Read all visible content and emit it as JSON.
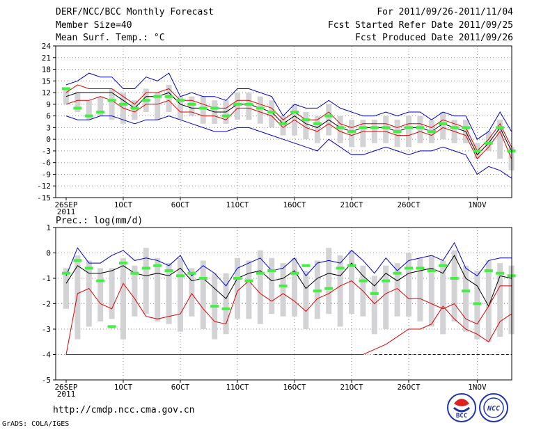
{
  "header": {
    "title": "DERF/NCC/BCC Monthly Forecast",
    "member_size": "Member Size=40",
    "variable": "Mean Surf. Temp.: °C",
    "forecast_range": "For 2011/09/26-2011/11/04",
    "fcst_started": "Fcst Started Refer Date 2011/09/25",
    "fcst_produced": "Fcst Produced Date 2011/09/26"
  },
  "footer": {
    "url": "http://cmdp.ncc.cma.gov.cn",
    "grads": "GrADS: COLA/IGES",
    "logo_bcc": "BCC",
    "logo_ncc": "NCC"
  },
  "colors": {
    "box": "#d3d3d6",
    "blue": "#0000cc",
    "red": "#dd0000",
    "black": "#000000",
    "green": "#44ee44"
  },
  "chart_data": [
    {
      "type": "line",
      "title": "Mean Surf. Temp.: °C",
      "ylim": [
        -15,
        24
      ],
      "yticks": [
        -15,
        -12,
        -9,
        -6,
        -3,
        0,
        3,
        6,
        9,
        12,
        15,
        18,
        21,
        24
      ],
      "xticks": [
        {
          "day": 0,
          "label": "26SEP"
        },
        {
          "day": 5,
          "label": "1OCT"
        },
        {
          "day": 10,
          "label": "6OCT"
        },
        {
          "day": 15,
          "label": "11OCT"
        },
        {
          "day": 20,
          "label": "16OCT"
        },
        {
          "day": 25,
          "label": "21OCT"
        },
        {
          "day": 30,
          "label": "26OCT"
        },
        {
          "day": 36,
          "label": "1NOV"
        }
      ],
      "year_label": "2011",
      "series": [
        {
          "name": "max",
          "color": "blue",
          "values": [
            14,
            15,
            17,
            16,
            16,
            13,
            13,
            16,
            15,
            17,
            11,
            12,
            11,
            11,
            10,
            13,
            13,
            12,
            11,
            6,
            9,
            8,
            8,
            10,
            8,
            7,
            6,
            6,
            7,
            6,
            7,
            7,
            5,
            7,
            6,
            6,
            0,
            2,
            7,
            2
          ]
        },
        {
          "name": "upper",
          "color": "red",
          "values": [
            12,
            14,
            13,
            13,
            13,
            11,
            9,
            12,
            12,
            13,
            10,
            10,
            9,
            8,
            8,
            10,
            10,
            9,
            8,
            5,
            7,
            5,
            5,
            7,
            4,
            3,
            4,
            4,
            4,
            3,
            4,
            4,
            3,
            5,
            4,
            3,
            -3,
            0,
            4,
            -2
          ]
        },
        {
          "name": "mean",
          "color": "black",
          "values": [
            11,
            12,
            12,
            12,
            12,
            10,
            8,
            11,
            11,
            12,
            9,
            8,
            8,
            7,
            7,
            9,
            9,
            8,
            7,
            4,
            6,
            4,
            3,
            5,
            3,
            2,
            3,
            3,
            3,
            2,
            3,
            3,
            2,
            4,
            3,
            2,
            -4,
            -1,
            3,
            -3
          ]
        },
        {
          "name": "lower",
          "color": "red",
          "values": [
            9,
            10,
            10,
            11,
            10,
            8,
            7,
            9,
            9,
            10,
            7,
            7,
            6,
            6,
            5,
            8,
            8,
            7,
            6,
            3,
            5,
            3,
            2,
            4,
            2,
            1,
            2,
            2,
            2,
            1,
            1,
            2,
            1,
            3,
            2,
            1,
            -5,
            -2,
            2,
            -5
          ]
        },
        {
          "name": "min",
          "color": "blue",
          "values": [
            6,
            5,
            5,
            6,
            6,
            5,
            4,
            5,
            5,
            6,
            5,
            4,
            3,
            2,
            2,
            3,
            3,
            2,
            1,
            0,
            -1,
            -2,
            -3,
            0,
            -2,
            -4,
            -4,
            -3,
            -2,
            -3,
            -4,
            -3,
            -3,
            -2,
            -3,
            -4,
            -9,
            -7,
            -8,
            -10
          ]
        }
      ],
      "obs_values": [
        13,
        8,
        6,
        7,
        10,
        9,
        8,
        10,
        11,
        11,
        10,
        9,
        8,
        8,
        6,
        9,
        9,
        8,
        7,
        4,
        7,
        5,
        4,
        6,
        3,
        2,
        3,
        3,
        3,
        2,
        3,
        3,
        2,
        4,
        3,
        3,
        -3,
        -1,
        3,
        -3
      ],
      "box_upper": [
        13,
        12,
        10,
        11,
        13,
        12,
        10,
        13,
        12,
        14,
        11,
        11,
        11,
        10,
        10,
        12,
        12,
        11,
        10,
        6,
        9,
        7,
        6,
        9,
        6,
        5,
        5,
        5,
        6,
        5,
        6,
        6,
        5,
        7,
        5,
        5,
        -1,
        2,
        5,
        -2
      ],
      "box_lower": [
        9,
        7,
        5,
        6,
        5,
        4,
        5,
        7,
        5,
        7,
        5,
        6,
        4,
        4,
        4,
        5,
        5,
        4,
        3,
        1,
        1,
        0,
        -1,
        1,
        -1,
        -2,
        -2,
        -1,
        -1,
        -2,
        -2,
        -1,
        -1,
        0,
        -1,
        -1,
        -5,
        -3,
        -5,
        -8
      ]
    },
    {
      "type": "line",
      "title": "Prec.: log(mm/d)",
      "ylim": [
        -5,
        1
      ],
      "yticks": [
        -5,
        -4,
        -3,
        -2,
        -1,
        0,
        1
      ],
      "xticks": [
        {
          "day": 0,
          "label": "26SEP"
        },
        {
          "day": 5,
          "label": "1OCT"
        },
        {
          "day": 10,
          "label": "6OCT"
        },
        {
          "day": 15,
          "label": "11OCT"
        },
        {
          "day": 20,
          "label": "16OCT"
        },
        {
          "day": 25,
          "label": "21OCT"
        },
        {
          "day": 30,
          "label": "26OCT"
        },
        {
          "day": 36,
          "label": "1NOV"
        }
      ],
      "year_label": "2011",
      "series": [
        {
          "name": "max",
          "color": "blue",
          "values": [
            -0.9,
            0.2,
            -0.4,
            -0.4,
            -0.1,
            0.1,
            -0.3,
            -0.2,
            -0.3,
            -0.5,
            -0.1,
            -0.9,
            -0.5,
            -0.8,
            -1.3,
            -0.6,
            -0.4,
            -0.2,
            -0.7,
            -0.6,
            -0.2,
            -0.9,
            -0.4,
            -0.3,
            -0.4,
            0.1,
            -0.3,
            -0.8,
            -0.2,
            -0.7,
            -0.3,
            -0.2,
            -0.1,
            -0.3,
            0.4,
            -0.6,
            -0.9,
            -0.3,
            -0.2,
            -0.2
          ]
        },
        {
          "name": "mean",
          "color": "black",
          "values": [
            -1.2,
            -0.5,
            -0.8,
            -0.8,
            -0.7,
            -0.5,
            -0.8,
            -0.9,
            -0.8,
            -0.9,
            -0.6,
            -1.1,
            -1.0,
            -1.4,
            -1.8,
            -1.0,
            -0.8,
            -0.7,
            -1.1,
            -1.0,
            -0.7,
            -1.4,
            -1.0,
            -0.8,
            -0.9,
            -0.4,
            -0.9,
            -1.3,
            -0.8,
            -1.1,
            -0.8,
            -0.7,
            -0.6,
            -0.8,
            -0.1,
            -1.0,
            -1.3,
            -2.1,
            -0.9,
            -1.0
          ]
        },
        {
          "name": "lower",
          "color": "red",
          "values": [
            -4,
            -1.6,
            -1.4,
            -2.0,
            -2.2,
            -1.2,
            -1.8,
            -2.5,
            -2.6,
            -2.5,
            -2.4,
            -1.6,
            -2.2,
            -2.7,
            -2.8,
            -1.5,
            -1.1,
            -1.6,
            -1.9,
            -1.6,
            -1.9,
            -2.3,
            -1.8,
            -1.6,
            -1.3,
            -1.1,
            -1.5,
            -2.0,
            -1.6,
            -1.4,
            -1.8,
            -1.8,
            -2.0,
            -2.2,
            -2.0,
            -2.6,
            -2.8,
            -2.1,
            -1.3,
            -1.3
          ]
        },
        {
          "name": "min",
          "color": "red",
          "values": [
            -4,
            -4,
            -4,
            -4,
            -4,
            -4,
            -4,
            -4,
            -4,
            -4,
            -4,
            -4,
            -4,
            -4,
            -4,
            -4,
            -4,
            -4,
            -4,
            -4,
            -4,
            -4,
            -4,
            -4,
            -4,
            -4,
            -4,
            -3.8,
            -3.6,
            -3.3,
            -3.0,
            -3.0,
            -2.8,
            -2.1,
            -2.6,
            -3.0,
            -3.2,
            -3.5,
            -2.7,
            -2.4
          ]
        }
      ],
      "obs_values": [
        -0.8,
        -0.3,
        -0.6,
        -1.1,
        -2.9,
        -0.4,
        -0.8,
        -0.6,
        -0.5,
        -0.7,
        -0.9,
        -0.8,
        -1.0,
        -2.1,
        -2.2,
        -1.0,
        -1.1,
        -0.8,
        -0.7,
        -1.3,
        -0.8,
        -0.5,
        -1.5,
        -1.4,
        -0.6,
        -0.5,
        -1.1,
        -1.6,
        -1.1,
        -0.8,
        -0.6,
        -0.6,
        -0.7,
        -0.5,
        -1.0,
        -1.5,
        -2.0,
        -0.7,
        -0.8,
        -0.9
      ],
      "box_upper": [
        -0.6,
        -0.1,
        -0.3,
        -0.6,
        -0.6,
        -0.2,
        -0.5,
        0.2,
        -0.2,
        -0.4,
        -0.2,
        -0.6,
        -0.3,
        -0.8,
        -0.8,
        -0.2,
        -0.3,
        0.1,
        -0.2,
        -0.4,
        -0.2,
        -0.7,
        -0.3,
        0.2,
        -0.1,
        0.1,
        -0.5,
        -0.9,
        -0.5,
        -0.4,
        0.0,
        -0.2,
        -0.1,
        -0.3,
        0.1,
        -0.5,
        -0.7,
        -0.3,
        -0.4,
        -0.5
      ],
      "box_lower": [
        -2.2,
        -3.4,
        -2.9,
        -2.7,
        -2.6,
        -3.4,
        -2.5,
        -2.4,
        -2.7,
        -2.8,
        -3.1,
        -2.5,
        -3.0,
        -3.4,
        -3.2,
        -2.6,
        -2.6,
        -2.8,
        -2.4,
        -2.5,
        -2.5,
        -3.0,
        -2.6,
        -2.4,
        -2.9,
        -2.4,
        -2.5,
        -3.2,
        -3.0,
        -2.5,
        -2.5,
        -2.7,
        -2.9,
        -3.2,
        -2.7,
        -3.1,
        -3.4,
        -3.5,
        -3.3,
        -3.2
      ]
    }
  ]
}
